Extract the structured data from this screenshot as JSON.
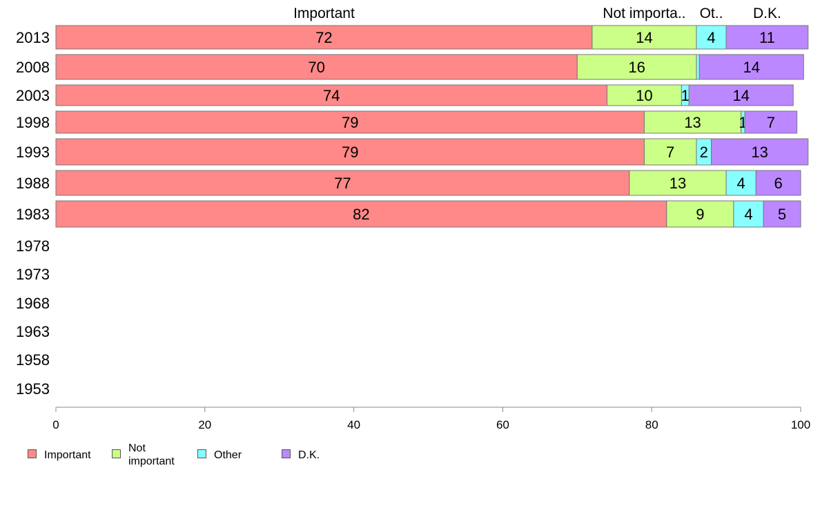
{
  "chart_data": {
    "type": "bar",
    "orientation": "horizontal",
    "stacked": true,
    "categories": [
      "2013",
      "2008",
      "2003",
      "1998",
      "1993",
      "1988",
      "1983",
      "1978",
      "1973",
      "1968",
      "1963",
      "1958",
      "1953"
    ],
    "series": [
      {
        "name": "Important",
        "color": "#ff8888",
        "values": [
          72,
          70,
          74,
          79,
          79,
          77,
          82,
          null,
          null,
          null,
          null,
          null,
          null
        ]
      },
      {
        "name": "Not important",
        "color": "#ccff88",
        "values": [
          14,
          16,
          10,
          13,
          7,
          13,
          9,
          null,
          null,
          null,
          null,
          null,
          null
        ]
      },
      {
        "name": "Other",
        "color": "#88ffff",
        "values": [
          4,
          0.4,
          1,
          0.5,
          2,
          4,
          4,
          null,
          null,
          null,
          null,
          null,
          null
        ]
      },
      {
        "name": "D.K.",
        "color": "#bb88ff",
        "values": [
          11,
          14,
          14,
          7,
          13,
          6,
          5,
          null,
          null,
          null,
          null,
          null,
          null
        ]
      }
    ],
    "data_labels": [
      [
        "72",
        "14",
        "4",
        "11"
      ],
      [
        "70",
        "16",
        "",
        "14"
      ],
      [
        "74",
        "10",
        "1",
        "14"
      ],
      [
        "79",
        "13",
        "1",
        "7"
      ],
      [
        "79",
        "7",
        "2",
        "13"
      ],
      [
        "77",
        "13",
        "4",
        "6"
      ],
      [
        "82",
        "9",
        "4",
        "5"
      ]
    ],
    "column_headers": [
      "Important",
      "Not importa..",
      "Ot..",
      "D.K."
    ],
    "x_ticks": [
      "0",
      "20",
      "40",
      "60",
      "80",
      "100"
    ],
    "xlim": [
      0,
      100
    ],
    "grid": false,
    "legend_position": "bottom-left",
    "legend": [
      {
        "label_lines": [
          "Important"
        ],
        "color": "#ff8888"
      },
      {
        "label_lines": [
          "Not",
          "important"
        ],
        "color": "#ccff88"
      },
      {
        "label_lines": [
          "Other"
        ],
        "color": "#88ffff"
      },
      {
        "label_lines": [
          "D.K."
        ],
        "color": "#bb88ff"
      }
    ]
  }
}
